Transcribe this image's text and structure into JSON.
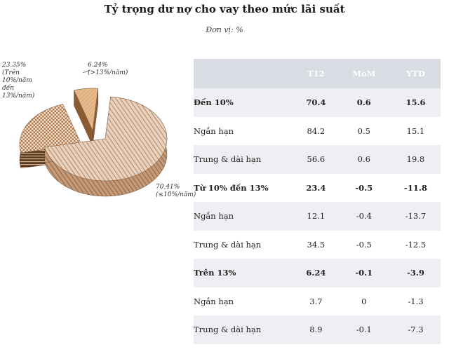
{
  "header": {
    "title": "Tỷ trọng dư nợ cho vay theo mức lãi suất",
    "unit": "Đơn vị: %"
  },
  "chart_data": {
    "type": "pie",
    "slices": [
      {
        "name": "(≤10%/năm)",
        "value": 70.41,
        "label": "70,41%"
      },
      {
        "name": "(Trên 10%/năm đến 13%/năm)",
        "value": 23.35,
        "label": "23.35%"
      },
      {
        "name": "(>13%/năm)",
        "value": 6.24,
        "label": "6.24%"
      }
    ],
    "style": "3d-exploded-hatched"
  },
  "table": {
    "columns": [
      "",
      "T12",
      "MoM",
      "YTD"
    ],
    "rows": [
      {
        "label": "Đến 10%",
        "t12": "70.4",
        "mom": "0.6",
        "ytd": "15.6",
        "group": true
      },
      {
        "label": "Ngắn hạn",
        "t12": "84.2",
        "mom": "0.5",
        "ytd": "15.1",
        "group": false
      },
      {
        "label": "Trung & dài hạn",
        "t12": "56.6",
        "mom": "0.6",
        "ytd": "19.8",
        "group": false
      },
      {
        "label": "Từ 10% đến 13%",
        "t12": "23.4",
        "mom": "-0.5",
        "ytd": "-11.8",
        "group": true
      },
      {
        "label": "Ngắn hạn",
        "t12": "12.1",
        "mom": "-0.4",
        "ytd": "-13.7",
        "group": false
      },
      {
        "label": "Trung & dài hạn",
        "t12": "34.5",
        "mom": "-0.5",
        "ytd": "-12.5",
        "group": false
      },
      {
        "label": "Trên 13%",
        "t12": "6.24",
        "mom": "-0.1",
        "ytd": "-3.9",
        "group": true
      },
      {
        "label": "Ngắn hạn",
        "t12": "3.7",
        "mom": "0",
        "ytd": "-1.3",
        "group": false
      },
      {
        "label": "Trung & dài hạn",
        "t12": "8.9",
        "mom": "-0.1",
        "ytd": "-7.3",
        "group": false
      }
    ]
  },
  "colors": {
    "header_bg": "#d9dce3",
    "row_shade": "#eeeff3",
    "slice_main": "#c9a486",
    "slice_mid": "#b98a5e",
    "slice_small": "#d8ad83"
  }
}
